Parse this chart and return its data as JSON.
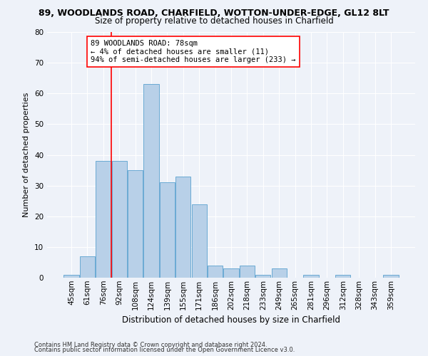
{
  "title1": "89, WOODLANDS ROAD, CHARFIELD, WOTTON-UNDER-EDGE, GL12 8LT",
  "title2": "Size of property relative to detached houses in Charfield",
  "xlabel": "Distribution of detached houses by size in Charfield",
  "ylabel": "Number of detached properties",
  "categories": [
    "45sqm",
    "61sqm",
    "76sqm",
    "92sqm",
    "108sqm",
    "124sqm",
    "139sqm",
    "155sqm",
    "171sqm",
    "186sqm",
    "202sqm",
    "218sqm",
    "233sqm",
    "249sqm",
    "265sqm",
    "281sqm",
    "296sqm",
    "312sqm",
    "328sqm",
    "343sqm",
    "359sqm"
  ],
  "values": [
    1,
    7,
    38,
    38,
    35,
    63,
    31,
    33,
    24,
    4,
    3,
    4,
    1,
    3,
    0,
    1,
    0,
    1,
    0,
    0,
    1
  ],
  "bar_color": "#b8d0e8",
  "bar_edge_color": "#6aaad4",
  "vline_x": 2.5,
  "vline_color": "red",
  "annotation_text": "89 WOODLANDS ROAD: 78sqm\n← 4% of detached houses are smaller (11)\n94% of semi-detached houses are larger (233) →",
  "annotation_box_color": "white",
  "annotation_box_edge": "red",
  "ylim": [
    0,
    80
  ],
  "yticks": [
    0,
    10,
    20,
    30,
    40,
    50,
    60,
    70,
    80
  ],
  "footer1": "Contains HM Land Registry data © Crown copyright and database right 2024.",
  "footer2": "Contains public sector information licensed under the Open Government Licence v3.0.",
  "bg_color": "#eef2f9",
  "grid_color": "white",
  "title1_fontsize": 9,
  "title2_fontsize": 8.5,
  "ylabel_fontsize": 8,
  "xlabel_fontsize": 8.5,
  "tick_fontsize": 7.5,
  "footer_fontsize": 6,
  "annot_fontsize": 7.5
}
